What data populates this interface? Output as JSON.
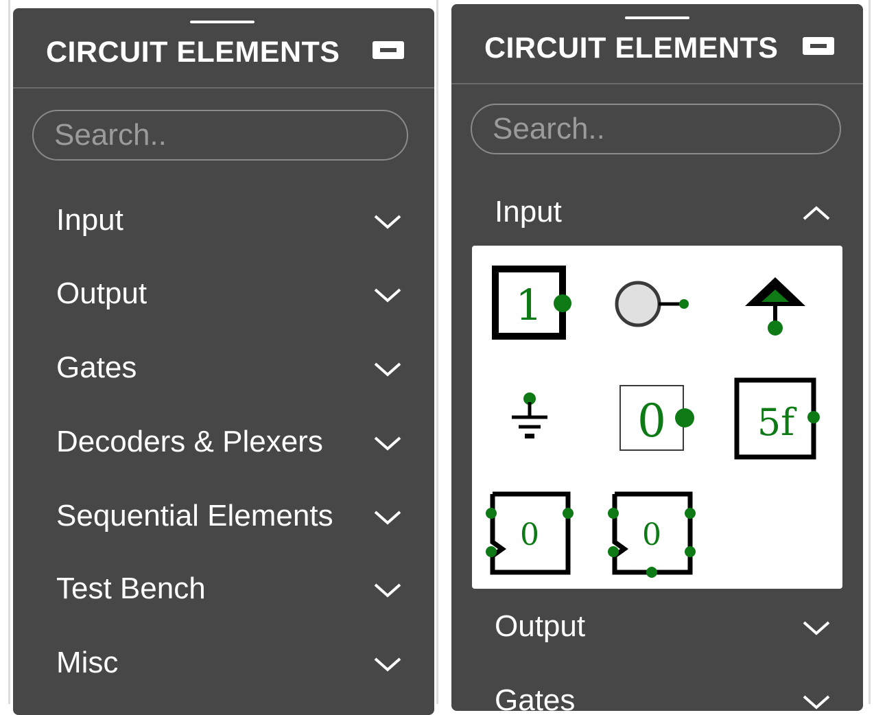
{
  "left_panel": {
    "title": "CIRCUIT ELEMENTS",
    "search_placeholder": "Search..",
    "categories": [
      {
        "label": "Input",
        "expanded": false
      },
      {
        "label": "Output",
        "expanded": false
      },
      {
        "label": "Gates",
        "expanded": false
      },
      {
        "label": "Decoders & Plexers",
        "expanded": false
      },
      {
        "label": "Sequential Elements",
        "expanded": false
      },
      {
        "label": "Test Bench",
        "expanded": false
      },
      {
        "label": "Misc",
        "expanded": false
      }
    ]
  },
  "right_panel": {
    "title": "CIRCUIT ELEMENTS",
    "search_placeholder": "Search..",
    "categories": [
      {
        "label": "Input",
        "expanded": true
      },
      {
        "label": "Output",
        "expanded": false
      },
      {
        "label": "Gates",
        "expanded": false
      }
    ],
    "input_elements": [
      {
        "name": "constant-value-icon",
        "text": "1"
      },
      {
        "name": "button-icon",
        "text": ""
      },
      {
        "name": "power-icon",
        "text": ""
      },
      {
        "name": "ground-icon",
        "text": ""
      },
      {
        "name": "input-icon",
        "text": "0"
      },
      {
        "name": "constant-hex-icon",
        "text": "5f"
      },
      {
        "name": "clock-input-icon",
        "text": "0"
      },
      {
        "name": "clock-input-enable-icon",
        "text": "0"
      }
    ]
  },
  "colors": {
    "panel_bg": "#474747",
    "accent_green": "#0e7a16",
    "text": "#ffffff",
    "placeholder": "#9b9b9b"
  }
}
